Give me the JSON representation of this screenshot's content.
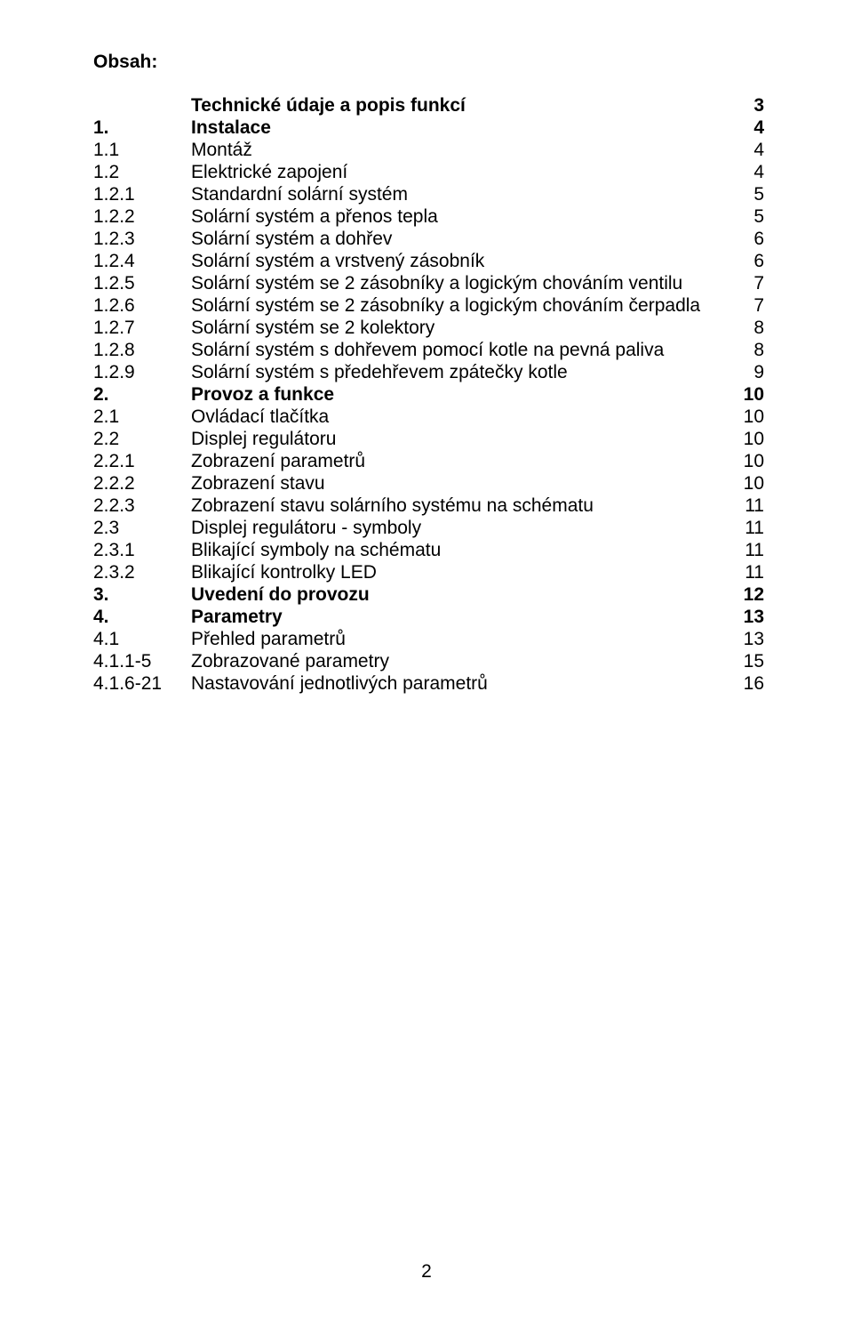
{
  "title": "Obsah:",
  "rows": [
    {
      "bold": true,
      "num": "",
      "label": "Technické údaje a popis funkcí",
      "page": "3"
    },
    {
      "bold": true,
      "num": "1.",
      "label": "Instalace",
      "page": "4"
    },
    {
      "bold": false,
      "num": "1.1",
      "label": "Montáž",
      "page": "4"
    },
    {
      "bold": false,
      "num": "1.2",
      "label": "Elektrické zapojení",
      "page": "4"
    },
    {
      "bold": false,
      "num": "1.2.1",
      "label": "Standardní solární systém",
      "page": "5"
    },
    {
      "bold": false,
      "num": "1.2.2",
      "label": "Solární systém a přenos tepla",
      "page": "5"
    },
    {
      "bold": false,
      "num": "1.2.3",
      "label": "Solární systém a dohřev",
      "page": "6"
    },
    {
      "bold": false,
      "num": "1.2.4",
      "label": "Solární systém a vrstvený zásobník",
      "page": "6"
    },
    {
      "bold": false,
      "num": "1.2.5",
      "label": "Solární systém se 2 zásobníky a logickým chováním ventilu",
      "page": "7"
    },
    {
      "bold": false,
      "num": "1.2.6",
      "label": "Solární systém se 2 zásobníky a logickým chováním čerpadla",
      "page": "7"
    },
    {
      "bold": false,
      "num": "1.2.7",
      "label": "Solární systém se 2 kolektory",
      "page": "8"
    },
    {
      "bold": false,
      "num": "1.2.8",
      "label": "Solární systém s dohřevem pomocí kotle na pevná paliva",
      "page": "8"
    },
    {
      "bold": false,
      "num": "1.2.9",
      "label": "Solární systém s předehřevem zpátečky kotle",
      "page": "9"
    },
    {
      "bold": true,
      "num": "2.",
      "label": "Provoz a funkce",
      "page": "10"
    },
    {
      "bold": false,
      "num": "2.1",
      "label": "Ovládací tlačítka",
      "page": "10"
    },
    {
      "bold": false,
      "num": "2.2",
      "label": "Displej regulátoru",
      "page": "10"
    },
    {
      "bold": false,
      "num": "2.2.1",
      "label": "Zobrazení parametrů",
      "page": "10"
    },
    {
      "bold": false,
      "num": "2.2.2",
      "label": "Zobrazení stavu",
      "page": "10"
    },
    {
      "bold": false,
      "num": "2.2.3",
      "label": "Zobrazení stavu solárního systému na schématu",
      "page": "11"
    },
    {
      "bold": false,
      "num": "2.3",
      "label": "Displej regulátoru - symboly",
      "page": "11"
    },
    {
      "bold": false,
      "num": "2.3.1",
      "label": "Blikající symboly na schématu",
      "page": "11"
    },
    {
      "bold": false,
      "num": "2.3.2",
      "label": "Blikající kontrolky LED",
      "page": "11"
    },
    {
      "bold": true,
      "num": "3.",
      "label": "Uvedení do provozu",
      "page": "12"
    },
    {
      "bold": true,
      "num": "4.",
      "label": "Parametry",
      "page": "13"
    },
    {
      "bold": false,
      "num": "4.1",
      "label": "Přehled parametrů",
      "page": "13"
    },
    {
      "bold": false,
      "num": "4.1.1-5",
      "label": "Zobrazované parametry",
      "page": "15"
    },
    {
      "bold": false,
      "num": "4.1.6-21",
      "label": "Nastavování jednotlivých parametrů",
      "page": "16"
    }
  ],
  "pageNumber": "2",
  "style": {
    "fontFamily": "Arial, Helvetica, sans-serif",
    "fontSizePt": 16,
    "textColor": "#000000",
    "backgroundColor": "#ffffff",
    "pageWidthPx": 960,
    "pageHeightPx": 1501
  }
}
